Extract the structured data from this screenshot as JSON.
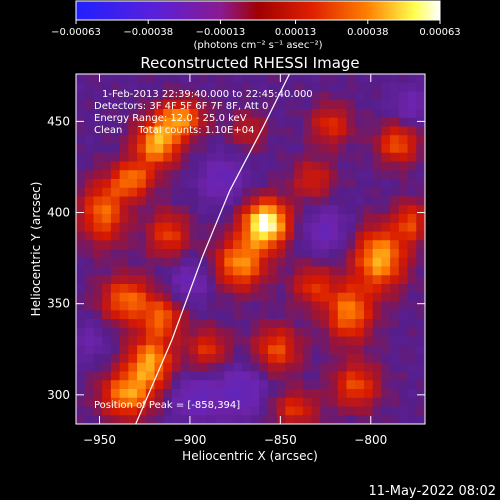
{
  "chart_data": {
    "type": "heatmap",
    "title": "Reconstructed RHESSI Image",
    "xlabel": "Heliocentric X (arcsec)",
    "ylabel": "Heliocentric Y (arcsec)",
    "xlim": [
      -963,
      -770
    ],
    "ylim": [
      284,
      476
    ],
    "x_ticks": [
      -950,
      -900,
      -850,
      -800
    ],
    "y_ticks": [
      300,
      350,
      400,
      450
    ],
    "x_tick_labels": [
      "−950",
      "−900",
      "−850",
      "−800"
    ],
    "y_tick_labels": [
      "300",
      "350",
      "400",
      "450"
    ],
    "colorbar": {
      "ticks": [
        -0.00063,
        -0.00038,
        -0.00013,
        0.00013,
        0.00038,
        0.00063
      ],
      "tick_labels": [
        "−0.00063",
        "−0.00038",
        "−0.00013",
        "0.00013",
        "0.00038",
        "0.00063"
      ],
      "range": [
        -0.00063,
        0.00063
      ],
      "unit_label": "(photons cm⁻² s⁻¹ asec⁻²)",
      "colors": [
        "#2020ff",
        "#7a1fa8",
        "#c00000",
        "#ff7000",
        "#ffff60",
        "#ffffff"
      ]
    },
    "annotations": {
      "time_range": "1‑Feb‑2013 22:39:40.000 to 22:45:40.000",
      "detectors": "Detectors: 3F 4F 5F 6F 7F 8F, Att 0",
      "energy": "Energy Range: 12.0 ‑ 25.0 keV",
      "method": "Clean     Total counts: 1.10E+04",
      "peak": "Position of Peak = [‑858,394]"
    },
    "peak": [
      -858,
      394
    ],
    "sources": [
      {
        "x": -858,
        "y": 394,
        "value": 0.00063,
        "sx": 9,
        "sy": 9
      },
      {
        "x": -872,
        "y": 372,
        "value": 0.0004,
        "sx": 10,
        "sy": 10
      },
      {
        "x": -918,
        "y": 438,
        "value": 0.00045,
        "sx": 9,
        "sy": 9
      },
      {
        "x": -905,
        "y": 452,
        "value": 0.00038,
        "sx": 9,
        "sy": 7
      },
      {
        "x": -932,
        "y": 418,
        "value": 0.00035,
        "sx": 8,
        "sy": 7
      },
      {
        "x": -948,
        "y": 400,
        "value": 0.00035,
        "sx": 9,
        "sy": 12
      },
      {
        "x": -912,
        "y": 388,
        "value": 0.00028,
        "sx": 8,
        "sy": 9
      },
      {
        "x": -935,
        "y": 352,
        "value": 0.00035,
        "sx": 10,
        "sy": 9
      },
      {
        "x": -915,
        "y": 342,
        "value": 0.0003,
        "sx": 8,
        "sy": 8
      },
      {
        "x": -922,
        "y": 318,
        "value": 0.00042,
        "sx": 9,
        "sy": 10
      },
      {
        "x": -935,
        "y": 300,
        "value": 0.0004,
        "sx": 10,
        "sy": 9
      },
      {
        "x": -890,
        "y": 325,
        "value": 0.00025,
        "sx": 8,
        "sy": 8
      },
      {
        "x": -832,
        "y": 360,
        "value": 0.00025,
        "sx": 8,
        "sy": 8
      },
      {
        "x": -812,
        "y": 345,
        "value": 0.00038,
        "sx": 9,
        "sy": 11
      },
      {
        "x": -795,
        "y": 375,
        "value": 0.00045,
        "sx": 10,
        "sy": 12
      },
      {
        "x": -778,
        "y": 395,
        "value": 0.00028,
        "sx": 6,
        "sy": 8
      },
      {
        "x": -852,
        "y": 325,
        "value": 0.0003,
        "sx": 9,
        "sy": 9
      },
      {
        "x": -842,
        "y": 292,
        "value": 0.00025,
        "sx": 9,
        "sy": 7
      },
      {
        "x": -808,
        "y": 305,
        "value": 0.0003,
        "sx": 9,
        "sy": 9
      },
      {
        "x": -785,
        "y": 438,
        "value": 0.00032,
        "sx": 8,
        "sy": 8
      },
      {
        "x": -822,
        "y": 448,
        "value": 0.00025,
        "sx": 8,
        "sy": 8
      },
      {
        "x": -832,
        "y": 418,
        "value": 0.00022,
        "sx": 8,
        "sy": 8
      },
      {
        "x": -868,
        "y": 445,
        "value": 0.00018,
        "sx": 7,
        "sy": 7
      },
      {
        "x": -882,
        "y": 418,
        "value": -0.0002,
        "sx": 9,
        "sy": 9
      },
      {
        "x": -900,
        "y": 362,
        "value": -0.00018,
        "sx": 8,
        "sy": 8
      },
      {
        "x": -872,
        "y": 302,
        "value": -0.00022,
        "sx": 10,
        "sy": 10
      },
      {
        "x": -825,
        "y": 390,
        "value": -0.00018,
        "sx": 9,
        "sy": 9
      },
      {
        "x": -898,
        "y": 298,
        "value": -0.0002,
        "sx": 9,
        "sy": 9
      },
      {
        "x": -778,
        "y": 458,
        "value": -0.00015,
        "sx": 8,
        "sy": 8
      },
      {
        "x": -955,
        "y": 330,
        "value": -0.00012,
        "sx": 7,
        "sy": 8
      }
    ],
    "limb_line": [
      [
        -930,
        284
      ],
      [
        -910,
        330
      ],
      [
        -893,
        376
      ],
      [
        -878,
        412
      ],
      [
        -860,
        446
      ],
      [
        -845,
        476
      ]
    ]
  },
  "footer": {
    "timestamp": "11‑May‑2022 08:02"
  }
}
